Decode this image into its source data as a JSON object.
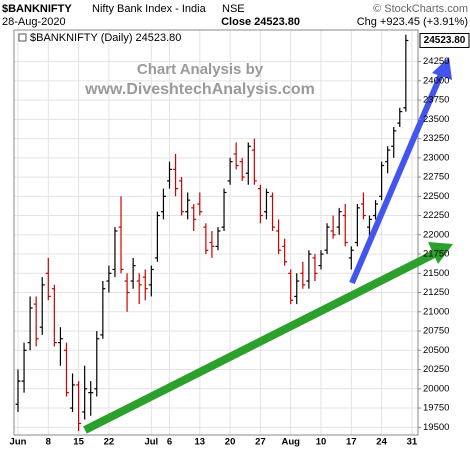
{
  "chart_data": {
    "type": "ohlc",
    "symbol": "$BANKNIFTY",
    "name": "Nifty Bank Index - India",
    "exchange": "NSE",
    "source": "© StockCharts.com",
    "date": "28-Aug-2020",
    "close_text": "Close 24523.80",
    "change_text": "Chg +923.45 (+3.91%)",
    "legend": "$BANKNIFTY (Daily) 24523.80",
    "last_label": "24523.80",
    "annotations": [
      "Chart Analysis by",
      "www.DiveshtechAnalysis.com"
    ],
    "categories": [
      "Jun",
      null,
      null,
      null,
      null,
      "8",
      null,
      null,
      null,
      null,
      "15",
      null,
      null,
      null,
      null,
      "22",
      null,
      null,
      null,
      null,
      null,
      null,
      "Jul",
      null,
      null,
      "6",
      null,
      null,
      null,
      null,
      "13",
      null,
      null,
      null,
      null,
      "20",
      null,
      null,
      null,
      null,
      "27",
      null,
      null,
      null,
      null,
      "Aug",
      null,
      null,
      null,
      null,
      "10",
      null,
      null,
      null,
      null,
      "17",
      null,
      null,
      null,
      null,
      "24",
      null,
      null,
      null,
      null,
      "31"
    ],
    "open": [
      19800,
      20100,
      20600,
      21100,
      20800,
      21500,
      21300,
      20600,
      20500,
      19750,
      20050,
      19700,
      19950,
      20000,
      20700,
      21400,
      21550,
      22100,
      21400,
      21400,
      21400,
      21450,
      21350,
      21700,
      22300,
      22700,
      22850,
      22700,
      22300,
      22350,
      22400,
      22100,
      21900,
      21850,
      22100,
      22700,
      23050,
      22950,
      22800,
      23100,
      22600,
      22300,
      22500,
      22050,
      21850,
      21500,
      21200,
      21500,
      21400,
      21700,
      21600,
      21800,
      22050,
      22100,
      22250,
      21700,
      21900,
      22400,
      22100,
      22250,
      22500,
      22950,
      23150,
      23450,
      23650,
      null
    ],
    "high": [
      20250,
      20600,
      21200,
      21200,
      21450,
      21700,
      21350,
      20800,
      20600,
      20200,
      20100,
      20300,
      20100,
      20750,
      21400,
      21600,
      22100,
      22500,
      21500,
      21700,
      21500,
      21550,
      21600,
      22300,
      22600,
      22950,
      23050,
      22750,
      22550,
      22400,
      22550,
      22150,
      22050,
      22100,
      22600,
      23000,
      23200,
      23000,
      23200,
      23250,
      22650,
      22600,
      22550,
      22200,
      21950,
      21550,
      21500,
      21650,
      21800,
      21750,
      21800,
      22150,
      22250,
      22350,
      22400,
      21850,
      22400,
      22550,
      22250,
      22450,
      22950,
      23150,
      23400,
      23650,
      24600,
      null
    ],
    "low": [
      19700,
      19950,
      20500,
      20550,
      20700,
      21150,
      20550,
      20300,
      19900,
      19700,
      19450,
      19600,
      19650,
      19900,
      20650,
      21250,
      21450,
      21500,
      21000,
      21300,
      21100,
      21150,
      21200,
      21650,
      22200,
      22600,
      22500,
      22250,
      22200,
      22050,
      22250,
      21750,
      21700,
      21800,
      22050,
      22650,
      22850,
      22700,
      22650,
      22650,
      22150,
      22200,
      22050,
      21750,
      21600,
      21100,
      21100,
      21300,
      21300,
      21400,
      21550,
      21750,
      21950,
      22000,
      21850,
      21550,
      21850,
      22200,
      21950,
      22200,
      22450,
      22800,
      23000,
      23400,
      23600,
      null
    ],
    "close": [
      20100,
      20500,
      21050,
      20650,
      21350,
      21200,
      20600,
      20650,
      19950,
      20050,
      19550,
      20000,
      19950,
      20650,
      21300,
      21500,
      22050,
      21550,
      21250,
      21600,
      21350,
      21300,
      21550,
      22250,
      22500,
      22850,
      22600,
      22300,
      22450,
      22200,
      22300,
      21800,
      21850,
      22050,
      22550,
      22950,
      22900,
      22750,
      23150,
      22700,
      22250,
      22550,
      22100,
      21800,
      21650,
      21150,
      21400,
      21350,
      21750,
      21500,
      21750,
      22100,
      22000,
      22300,
      21900,
      21800,
      22350,
      22250,
      22200,
      22400,
      22900,
      23100,
      23350,
      23600,
      24523.8,
      null
    ],
    "up_color": "#000000",
    "down_color": "#cc0000",
    "ylim": [
      19400,
      24660
    ],
    "yticks": [
      19500,
      19750,
      20000,
      20250,
      20500,
      20750,
      21000,
      21250,
      21500,
      21750,
      22000,
      22250,
      22500,
      22750,
      23000,
      23250,
      23500,
      23750,
      24000,
      24250
    ],
    "grid": true
  }
}
